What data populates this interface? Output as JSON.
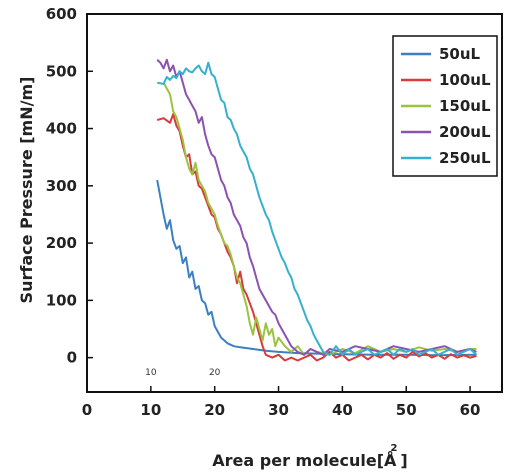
{
  "chart_data": {
    "type": "line",
    "xlabel": "Area per molecule[Å",
    "xlabel_super": "2",
    "xlabel_close": "]",
    "ylabel": "Surface Pressure [mN/m]",
    "xlim": [
      0,
      65
    ],
    "ylim": [
      -60,
      600
    ],
    "x_ticks": [
      0,
      10,
      20,
      30,
      40,
      50,
      60
    ],
    "y_ticks": [
      0,
      100,
      200,
      300,
      400,
      500,
      600
    ],
    "inner_labels": [
      {
        "text": "10",
        "x": 10
      },
      {
        "text": "20",
        "x": 20
      }
    ],
    "grid": false,
    "legend_position": "top-right",
    "series": [
      {
        "name": "50uL",
        "color": "#3b7fc4",
        "points": [
          [
            11,
            310
          ],
          [
            11.5,
            280
          ],
          [
            12,
            250
          ],
          [
            12.5,
            225
          ],
          [
            13,
            240
          ],
          [
            13.5,
            205
          ],
          [
            14,
            190
          ],
          [
            14.5,
            195
          ],
          [
            15,
            165
          ],
          [
            15.5,
            175
          ],
          [
            16,
            140
          ],
          [
            16.5,
            150
          ],
          [
            17,
            120
          ],
          [
            17.5,
            125
          ],
          [
            18,
            100
          ],
          [
            18.5,
            95
          ],
          [
            19,
            75
          ],
          [
            19.5,
            80
          ],
          [
            20,
            55
          ],
          [
            20.5,
            45
          ],
          [
            21,
            35
          ],
          [
            22,
            25
          ],
          [
            23,
            20
          ],
          [
            24,
            18
          ],
          [
            26,
            15
          ],
          [
            28,
            12
          ],
          [
            30,
            10
          ],
          [
            33,
            8
          ],
          [
            36,
            7
          ],
          [
            40,
            6
          ],
          [
            45,
            5
          ],
          [
            50,
            5
          ],
          [
            55,
            4
          ],
          [
            61,
            5
          ]
        ]
      },
      {
        "name": "100uL",
        "color": "#d93a3a",
        "points": [
          [
            11,
            415
          ],
          [
            12,
            418
          ],
          [
            13,
            410
          ],
          [
            13.5,
            425
          ],
          [
            14,
            405
          ],
          [
            14.5,
            395
          ],
          [
            15,
            370
          ],
          [
            15.5,
            350
          ],
          [
            16,
            355
          ],
          [
            16.5,
            320
          ],
          [
            17,
            325
          ],
          [
            17.5,
            300
          ],
          [
            18,
            295
          ],
          [
            18.5,
            280
          ],
          [
            19,
            265
          ],
          [
            19.5,
            250
          ],
          [
            20,
            245
          ],
          [
            20.5,
            225
          ],
          [
            21,
            215
          ],
          [
            21.5,
            200
          ],
          [
            22,
            185
          ],
          [
            22.5,
            175
          ],
          [
            23,
            160
          ],
          [
            23.5,
            130
          ],
          [
            24,
            150
          ],
          [
            24.5,
            120
          ],
          [
            25,
            110
          ],
          [
            25.5,
            95
          ],
          [
            26,
            80
          ],
          [
            26.5,
            60
          ],
          [
            27,
            40
          ],
          [
            27.5,
            20
          ],
          [
            28,
            5
          ],
          [
            29,
            0
          ],
          [
            30,
            5
          ],
          [
            31,
            -5
          ],
          [
            32,
            0
          ],
          [
            33,
            -5
          ],
          [
            34,
            0
          ],
          [
            35,
            5
          ],
          [
            36,
            -5
          ],
          [
            37,
            0
          ],
          [
            38,
            10
          ],
          [
            39,
            0
          ],
          [
            40,
            5
          ],
          [
            41,
            -5
          ],
          [
            42,
            0
          ],
          [
            43,
            5
          ],
          [
            44,
            -3
          ],
          [
            45,
            5
          ],
          [
            46,
            0
          ],
          [
            47,
            8
          ],
          [
            48,
            -2
          ],
          [
            49,
            5
          ],
          [
            50,
            0
          ],
          [
            51,
            10
          ],
          [
            52,
            2
          ],
          [
            53,
            8
          ],
          [
            54,
            0
          ],
          [
            55,
            5
          ],
          [
            56,
            -2
          ],
          [
            57,
            6
          ],
          [
            58,
            0
          ],
          [
            59,
            4
          ],
          [
            60,
            0
          ],
          [
            61,
            3
          ]
        ]
      },
      {
        "name": "150uL",
        "color": "#9bc341",
        "points": [
          [
            12,
            480
          ],
          [
            12.5,
            470
          ],
          [
            13,
            460
          ],
          [
            13.5,
            430
          ],
          [
            14,
            420
          ],
          [
            14.5,
            400
          ],
          [
            15,
            380
          ],
          [
            15.5,
            350
          ],
          [
            16,
            330
          ],
          [
            16.5,
            320
          ],
          [
            17,
            340
          ],
          [
            17.5,
            310
          ],
          [
            18,
            300
          ],
          [
            18.5,
            290
          ],
          [
            19,
            270
          ],
          [
            19.5,
            260
          ],
          [
            20,
            250
          ],
          [
            20.5,
            230
          ],
          [
            21,
            215
          ],
          [
            21.5,
            200
          ],
          [
            22,
            195
          ],
          [
            22.5,
            180
          ],
          [
            23,
            160
          ],
          [
            23.5,
            140
          ],
          [
            24,
            130
          ],
          [
            24.5,
            110
          ],
          [
            25,
            90
          ],
          [
            25.5,
            60
          ],
          [
            26,
            40
          ],
          [
            26.5,
            70
          ],
          [
            27,
            50
          ],
          [
            27.5,
            30
          ],
          [
            28,
            60
          ],
          [
            28.5,
            40
          ],
          [
            29,
            50
          ],
          [
            29.5,
            20
          ],
          [
            30,
            35
          ],
          [
            31,
            20
          ],
          [
            32,
            10
          ],
          [
            33,
            20
          ],
          [
            34,
            5
          ],
          [
            35,
            15
          ],
          [
            36,
            10
          ],
          [
            38,
            5
          ],
          [
            40,
            15
          ],
          [
            42,
            8
          ],
          [
            44,
            20
          ],
          [
            46,
            10
          ],
          [
            48,
            15
          ],
          [
            50,
            10
          ],
          [
            52,
            18
          ],
          [
            54,
            12
          ],
          [
            56,
            15
          ],
          [
            58,
            10
          ],
          [
            60,
            15
          ],
          [
            61,
            15
          ]
        ]
      },
      {
        "name": "200uL",
        "color": "#8b52b2",
        "points": [
          [
            11,
            520
          ],
          [
            11.5,
            515
          ],
          [
            12,
            505
          ],
          [
            12.5,
            520
          ],
          [
            13,
            500
          ],
          [
            13.5,
            510
          ],
          [
            14,
            490
          ],
          [
            14.5,
            500
          ],
          [
            15,
            480
          ],
          [
            15.5,
            460
          ],
          [
            16,
            450
          ],
          [
            16.5,
            440
          ],
          [
            17,
            430
          ],
          [
            17.5,
            410
          ],
          [
            18,
            420
          ],
          [
            18.5,
            390
          ],
          [
            19,
            370
          ],
          [
            19.5,
            355
          ],
          [
            20,
            350
          ],
          [
            20.5,
            330
          ],
          [
            21,
            310
          ],
          [
            21.5,
            300
          ],
          [
            22,
            280
          ],
          [
            22.5,
            270
          ],
          [
            23,
            250
          ],
          [
            23.5,
            240
          ],
          [
            24,
            230
          ],
          [
            24.5,
            210
          ],
          [
            25,
            200
          ],
          [
            25.5,
            175
          ],
          [
            26,
            160
          ],
          [
            26.5,
            140
          ],
          [
            27,
            120
          ],
          [
            27.5,
            110
          ],
          [
            28,
            100
          ],
          [
            28.5,
            90
          ],
          [
            29,
            80
          ],
          [
            29.5,
            75
          ],
          [
            30,
            60
          ],
          [
            30.5,
            50
          ],
          [
            31,
            40
          ],
          [
            31.5,
            30
          ],
          [
            32,
            20
          ],
          [
            33,
            10
          ],
          [
            34,
            5
          ],
          [
            35,
            15
          ],
          [
            36,
            10
          ],
          [
            37,
            5
          ],
          [
            38,
            15
          ],
          [
            40,
            10
          ],
          [
            42,
            20
          ],
          [
            44,
            15
          ],
          [
            46,
            10
          ],
          [
            48,
            20
          ],
          [
            50,
            15
          ],
          [
            52,
            10
          ],
          [
            54,
            15
          ],
          [
            56,
            20
          ],
          [
            58,
            10
          ],
          [
            60,
            15
          ],
          [
            61,
            10
          ]
        ]
      },
      {
        "name": "250uL",
        "color": "#35b0cf",
        "points": [
          [
            11,
            480
          ],
          [
            12,
            478
          ],
          [
            12.5,
            490
          ],
          [
            13,
            485
          ],
          [
            13.5,
            492
          ],
          [
            14,
            488
          ],
          [
            14.5,
            500
          ],
          [
            15,
            495
          ],
          [
            15.5,
            505
          ],
          [
            16,
            500
          ],
          [
            16.5,
            498
          ],
          [
            17,
            505
          ],
          [
            17.5,
            510
          ],
          [
            18,
            500
          ],
          [
            18.5,
            495
          ],
          [
            19,
            515
          ],
          [
            19.5,
            495
          ],
          [
            20,
            490
          ],
          [
            20.5,
            470
          ],
          [
            21,
            450
          ],
          [
            21.5,
            445
          ],
          [
            22,
            420
          ],
          [
            22.5,
            415
          ],
          [
            23,
            400
          ],
          [
            23.5,
            390
          ],
          [
            24,
            370
          ],
          [
            24.5,
            360
          ],
          [
            25,
            350
          ],
          [
            25.5,
            330
          ],
          [
            26,
            320
          ],
          [
            26.5,
            300
          ],
          [
            27,
            280
          ],
          [
            27.5,
            265
          ],
          [
            28,
            250
          ],
          [
            28.5,
            240
          ],
          [
            29,
            220
          ],
          [
            29.5,
            205
          ],
          [
            30,
            190
          ],
          [
            30.5,
            175
          ],
          [
            31,
            165
          ],
          [
            31.5,
            150
          ],
          [
            32,
            140
          ],
          [
            32.5,
            120
          ],
          [
            33,
            110
          ],
          [
            33.5,
            95
          ],
          [
            34,
            80
          ],
          [
            34.5,
            65
          ],
          [
            35,
            55
          ],
          [
            35.5,
            40
          ],
          [
            36,
            30
          ],
          [
            36.5,
            20
          ],
          [
            37,
            10
          ],
          [
            38,
            5
          ],
          [
            39,
            20
          ],
          [
            40,
            5
          ],
          [
            41,
            15
          ],
          [
            42,
            5
          ],
          [
            43,
            10
          ],
          [
            44,
            15
          ],
          [
            45,
            5
          ],
          [
            46,
            10
          ],
          [
            47,
            15
          ],
          [
            48,
            5
          ],
          [
            49,
            15
          ],
          [
            50,
            10
          ],
          [
            51,
            15
          ],
          [
            52,
            5
          ],
          [
            53,
            10
          ],
          [
            54,
            15
          ],
          [
            55,
            5
          ],
          [
            56,
            10
          ],
          [
            57,
            15
          ],
          [
            58,
            5
          ],
          [
            59,
            10
          ],
          [
            60,
            15
          ],
          [
            61,
            5
          ]
        ]
      }
    ]
  }
}
